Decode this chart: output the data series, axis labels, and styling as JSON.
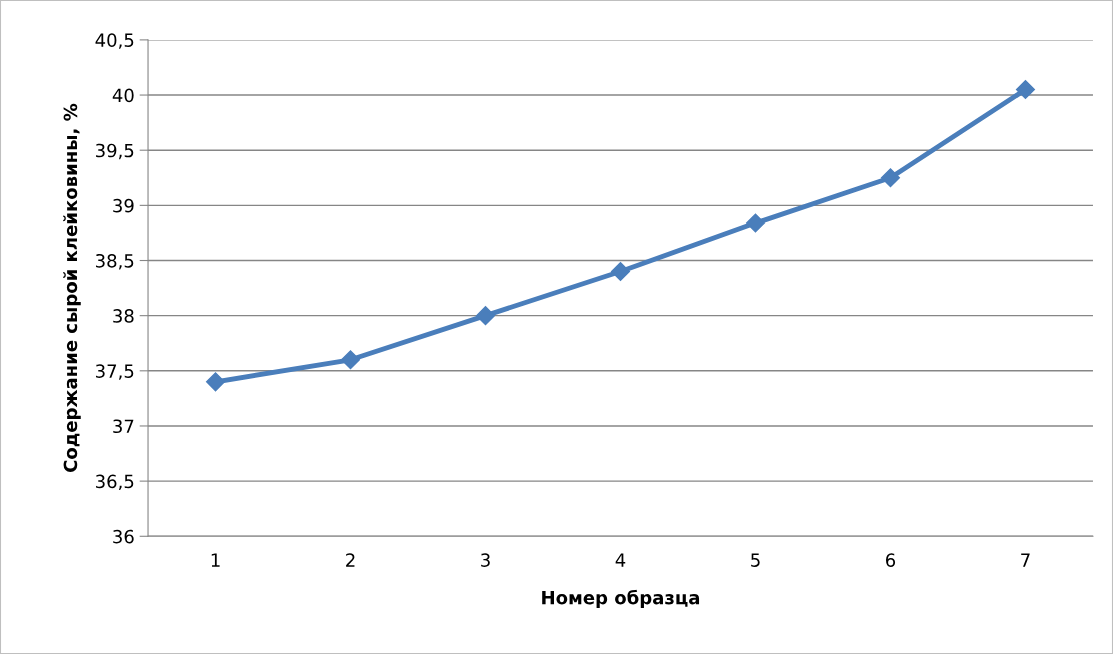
{
  "chart_data": {
    "type": "line",
    "xlabel": "Номер образца",
    "ylabel": "Содержание сырой клейковины, %",
    "categories": [
      "1",
      "2",
      "3",
      "4",
      "5",
      "6",
      "7"
    ],
    "series": [
      {
        "color": "#4a7ebb",
        "values": [
          37.4,
          37.6,
          38.0,
          38.4,
          38.84,
          39.25,
          40.05
        ]
      }
    ],
    "ylim": [
      36,
      40.5
    ],
    "yticks": [
      36,
      {
        "value": 36.5,
        "label": "36,5"
      },
      37,
      {
        "value": 37.5,
        "label": "37,5"
      },
      38,
      {
        "value": 38.5,
        "label": "38,5"
      },
      39,
      {
        "value": 39.5,
        "label": "39,5"
      },
      40,
      {
        "value": 40.5,
        "label": "40,5"
      }
    ],
    "grid": "y",
    "marker": "diamond",
    "line_style": "solid",
    "legend": false
  }
}
